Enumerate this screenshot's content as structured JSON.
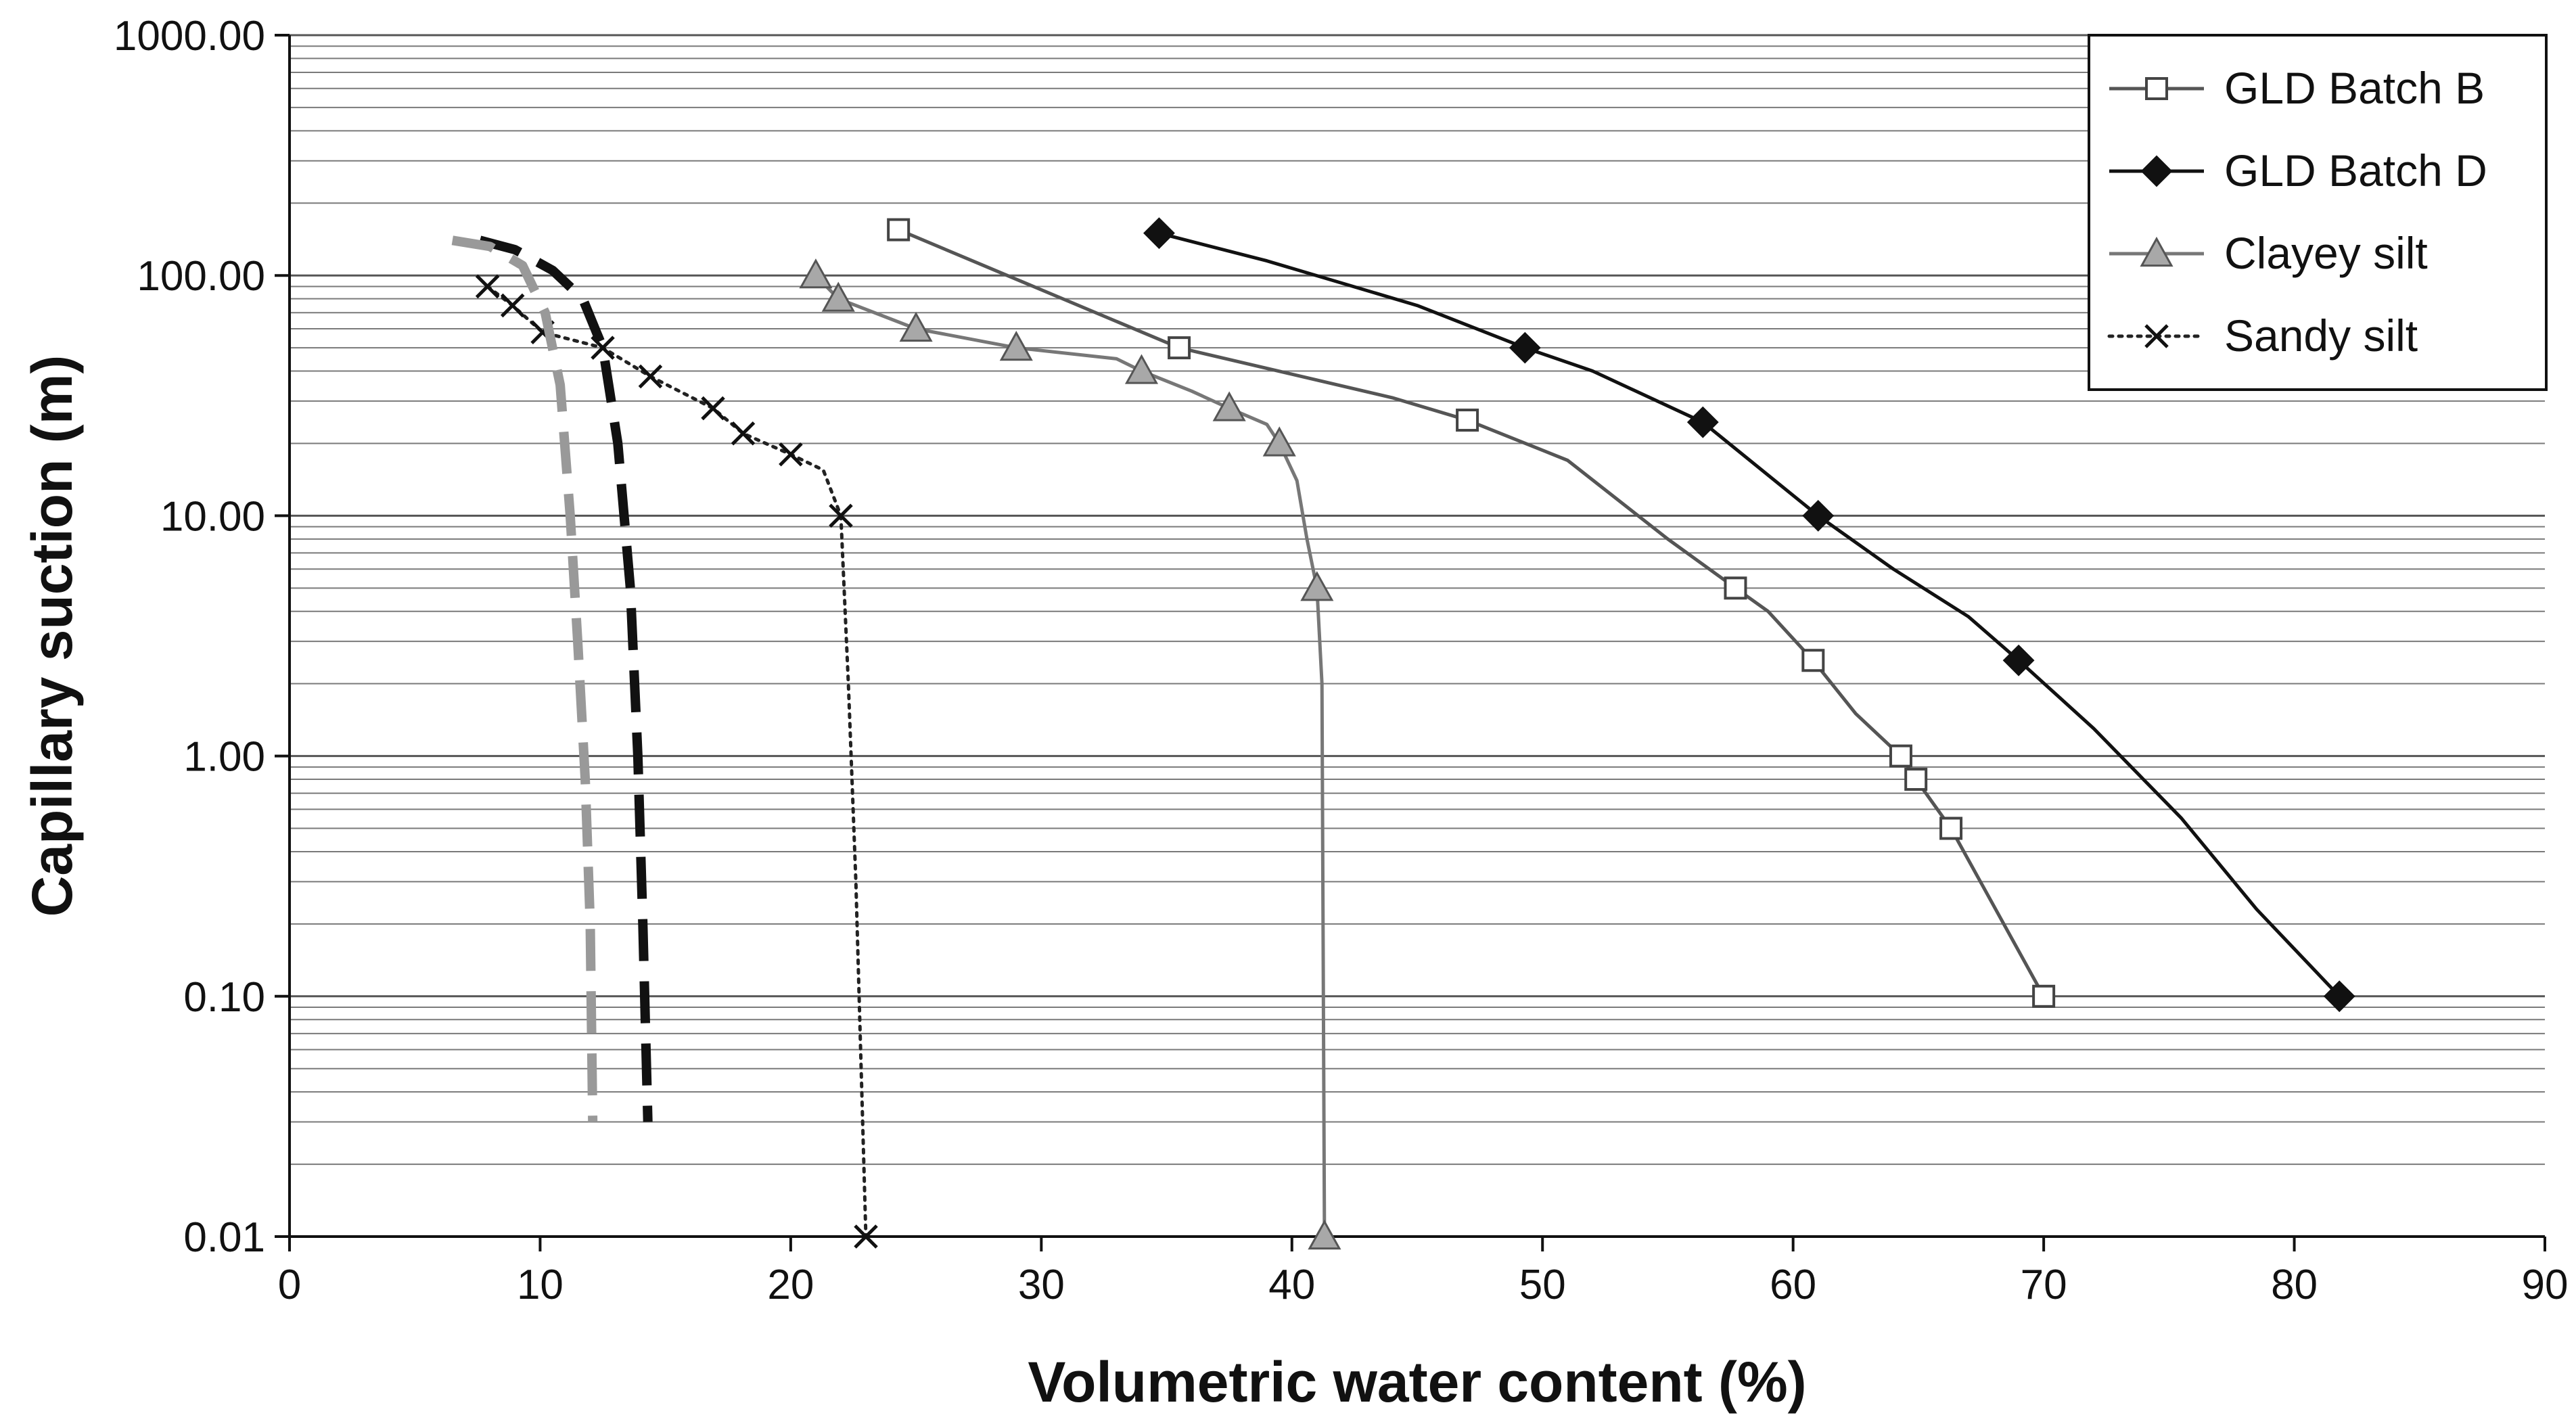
{
  "chart_data": {
    "type": "line",
    "title": "",
    "xlabel": "Volumetric water content (%)",
    "ylabel": "Capillary suction (m)",
    "xlim": [
      0,
      90
    ],
    "ylim": [
      0.01,
      1000
    ],
    "yscale": "log",
    "x_ticks": [
      0,
      10,
      20,
      30,
      40,
      50,
      60,
      70,
      80,
      90
    ],
    "x_tick_labels": [
      "0",
      "10",
      "20",
      "30",
      "40",
      "50",
      "60",
      "70",
      "80",
      "90"
    ],
    "y_ticks": [
      0.01,
      0.1,
      1,
      10,
      100,
      1000
    ],
    "y_tick_labels": [
      "0.01",
      "0.10",
      "1.00",
      "10.00",
      "100.00",
      "1000.00"
    ],
    "grid": "horizontal-log",
    "legend_position": "top-right",
    "series": [
      {
        "name": "GLD Batch B",
        "marker": "open-square",
        "color": "#555555",
        "line_style": "solid",
        "points": [
          [
            24.3,
            155
          ],
          [
            35.5,
            50
          ],
          [
            47,
            25
          ],
          [
            57.7,
            5
          ],
          [
            60.8,
            2.5
          ],
          [
            64.3,
            1
          ],
          [
            64.9,
            0.8
          ],
          [
            66.3,
            0.5
          ],
          [
            70,
            0.1
          ]
        ],
        "curve": [
          [
            24.3,
            155
          ],
          [
            35.5,
            50
          ],
          [
            44,
            31
          ],
          [
            47,
            25
          ],
          [
            51,
            17
          ],
          [
            55,
            8
          ],
          [
            57.7,
            5
          ],
          [
            59,
            4
          ],
          [
            60.8,
            2.5
          ],
          [
            62.5,
            1.5
          ],
          [
            64.3,
            1
          ],
          [
            64.9,
            0.8
          ],
          [
            66.3,
            0.5
          ],
          [
            70,
            0.1
          ]
        ]
      },
      {
        "name": "GLD Batch D",
        "marker": "filled-diamond",
        "color": "#111111",
        "line_style": "solid",
        "points": [
          [
            34.7,
            150
          ],
          [
            49.3,
            50
          ],
          [
            56.4,
            24.5
          ],
          [
            61,
            10
          ],
          [
            69,
            2.5
          ],
          [
            81.8,
            0.1
          ]
        ],
        "curve": [
          [
            34.7,
            150
          ],
          [
            39,
            115
          ],
          [
            45,
            75
          ],
          [
            49.3,
            50
          ],
          [
            52,
            40
          ],
          [
            56.4,
            24.5
          ],
          [
            61,
            10
          ],
          [
            64,
            6
          ],
          [
            67,
            3.8
          ],
          [
            69,
            2.5
          ],
          [
            72,
            1.3
          ],
          [
            75.5,
            0.55
          ],
          [
            78.5,
            0.23
          ],
          [
            81.8,
            0.1
          ]
        ]
      },
      {
        "name": "Clayey silt",
        "marker": "filled-triangle",
        "color": "#777777",
        "line_style": "solid",
        "points": [
          [
            21,
            100
          ],
          [
            21.9,
            80
          ],
          [
            25,
            60
          ],
          [
            29,
            50
          ],
          [
            34,
            40
          ],
          [
            37.5,
            28
          ],
          [
            39.5,
            20
          ],
          [
            41,
            5
          ],
          [
            41.3,
            0.01
          ]
        ],
        "curve": [
          [
            21,
            100
          ],
          [
            21.9,
            80
          ],
          [
            25,
            60
          ],
          [
            29,
            50
          ],
          [
            33,
            45
          ],
          [
            34,
            40
          ],
          [
            36,
            33
          ],
          [
            37.5,
            28
          ],
          [
            39,
            24
          ],
          [
            39.5,
            20
          ],
          [
            40.2,
            14
          ],
          [
            40.6,
            8
          ],
          [
            41,
            5
          ],
          [
            41.2,
            2
          ],
          [
            41.3,
            0.01
          ]
        ]
      },
      {
        "name": "Sandy silt",
        "marker": "x",
        "color": "#222222",
        "line_style": "dotted",
        "points": [
          [
            7.9,
            90
          ],
          [
            8.9,
            75
          ],
          [
            10.1,
            58
          ],
          [
            12.5,
            50
          ],
          [
            14.4,
            38
          ],
          [
            16.9,
            28
          ],
          [
            18.1,
            22
          ],
          [
            20,
            18
          ],
          [
            22,
            10
          ],
          [
            23,
            0.01
          ]
        ],
        "curve": [
          [
            7.9,
            90
          ],
          [
            8.9,
            75
          ],
          [
            10.1,
            58
          ],
          [
            12.5,
            50
          ],
          [
            14.4,
            38
          ],
          [
            16.9,
            28
          ],
          [
            18.1,
            22
          ],
          [
            20,
            18
          ],
          [
            21.3,
            15.5
          ],
          [
            22,
            10
          ],
          [
            22.3,
            2
          ],
          [
            22.6,
            0.3
          ],
          [
            23,
            0.01
          ]
        ]
      },
      {
        "name": "",
        "marker": "none",
        "color": "#111111",
        "line_style": "dashed",
        "points": [],
        "curve": [
          [
            7.6,
            140
          ],
          [
            9,
            128
          ],
          [
            10.5,
            105
          ],
          [
            11.7,
            80
          ],
          [
            12.5,
            50
          ],
          [
            13.1,
            20
          ],
          [
            13.6,
            5
          ],
          [
            13.9,
            1
          ],
          [
            14.1,
            0.2
          ],
          [
            14.3,
            0.03
          ]
        ]
      },
      {
        "name": "",
        "marker": "none",
        "color": "#999999",
        "line_style": "dashed",
        "points": [],
        "curve": [
          [
            6.5,
            140
          ],
          [
            8,
            132
          ],
          [
            9.3,
            110
          ],
          [
            10.2,
            70
          ],
          [
            10.8,
            35
          ],
          [
            11.2,
            10
          ],
          [
            11.5,
            3
          ],
          [
            11.8,
            0.8
          ],
          [
            12,
            0.2
          ],
          [
            12.1,
            0.03
          ]
        ]
      }
    ]
  }
}
